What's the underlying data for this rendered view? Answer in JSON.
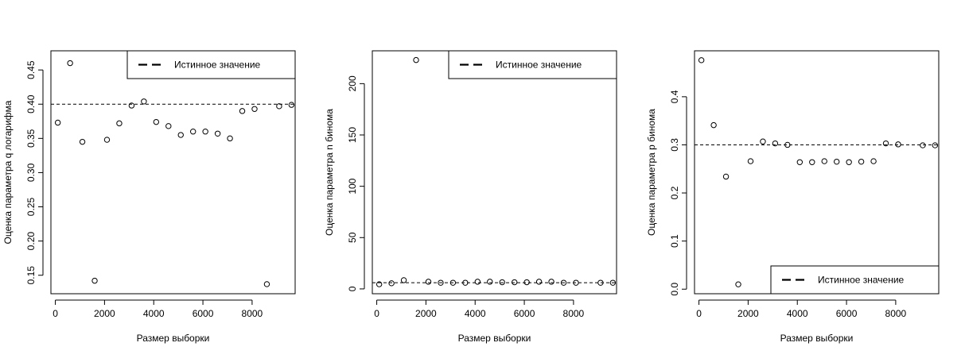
{
  "chart_data": [
    {
      "type": "scatter",
      "xlabel": "Размер выборки",
      "ylabel": "Оценка параметра q логарифма",
      "xlim": [
        -180,
        9750
      ],
      "ylim": [
        0.123,
        0.478
      ],
      "xticks": [
        0,
        2000,
        4000,
        6000,
        8000
      ],
      "xtick_labels": [
        "0",
        "2000",
        "4000",
        "6000",
        "8000"
      ],
      "yticks": [
        0.15,
        0.2,
        0.25,
        0.3,
        0.35,
        0.4,
        0.45
      ],
      "ytick_labels": [
        "0.15",
        "0.20",
        "0.25",
        "0.30",
        "0.35",
        "0.40",
        "0.45"
      ],
      "reference_line": {
        "y": 0.4,
        "style": "dashed"
      },
      "legend": {
        "label": "Истинное значение",
        "position": "top-right"
      },
      "series": [
        {
          "x": [
            100,
            600,
            1100,
            1600,
            2100,
            2600,
            3100,
            3600,
            4100,
            4600,
            5100,
            5600,
            6100,
            6600,
            7100,
            7600,
            8100,
            8600,
            9100,
            9600
          ],
          "y": [
            0.373,
            0.46,
            0.345,
            0.142,
            0.348,
            0.372,
            0.398,
            0.404,
            0.374,
            0.368,
            0.355,
            0.36,
            0.36,
            0.357,
            0.35,
            0.39,
            0.393,
            0.137,
            0.397,
            0.399
          ]
        }
      ]
    },
    {
      "type": "scatter",
      "xlabel": "Размер выборки",
      "ylabel": "Оценка параметра n бинома",
      "xlim": [
        -180,
        9750
      ],
      "ylim": [
        -4.7,
        232
      ],
      "xticks": [
        0,
        2000,
        4000,
        6000,
        8000
      ],
      "xtick_labels": [
        "0",
        "2000",
        "4000",
        "6000",
        "8000"
      ],
      "yticks": [
        0,
        50,
        100,
        150,
        200
      ],
      "ytick_labels": [
        "0",
        "50",
        "100",
        "150",
        "200"
      ],
      "reference_line": {
        "y": 6,
        "style": "dashed"
      },
      "legend": {
        "label": "Истинное значение",
        "position": "top-right"
      },
      "series": [
        {
          "x": [
            100,
            600,
            1100,
            1600,
            2100,
            2600,
            3100,
            3600,
            4100,
            4600,
            5100,
            5600,
            6100,
            6600,
            7100,
            7600,
            8100,
            9100,
            9600
          ],
          "y": [
            4.5,
            5.5,
            8.5,
            223,
            7,
            6,
            6,
            6,
            7,
            7,
            6.5,
            6.5,
            6.5,
            7,
            7,
            6,
            6,
            6,
            6
          ]
        }
      ]
    },
    {
      "type": "scatter",
      "xlabel": "Размер выборки",
      "ylabel": "Оценка параметра p бинома",
      "xlim": [
        -180,
        9750
      ],
      "ylim": [
        -0.0095,
        0.4955
      ],
      "xticks": [
        0,
        2000,
        4000,
        6000,
        8000
      ],
      "xtick_labels": [
        "0",
        "2000",
        "4000",
        "6000",
        "8000"
      ],
      "yticks": [
        0,
        0.1,
        0.2,
        0.3,
        0.4
      ],
      "ytick_labels": [
        "0.0",
        "0.1",
        "0.2",
        "0.3",
        "0.4"
      ],
      "reference_line": {
        "y": 0.3,
        "style": "dashed"
      },
      "legend": {
        "label": "Истинное значение",
        "position": "bottom-right"
      },
      "series": [
        {
          "x": [
            100,
            600,
            1100,
            1600,
            2100,
            2600,
            3100,
            3600,
            4100,
            4600,
            5100,
            5600,
            6100,
            6600,
            7100,
            7600,
            8100,
            9100,
            9600
          ],
          "y": [
            0.476,
            0.341,
            0.234,
            0.01,
            0.266,
            0.307,
            0.303,
            0.3,
            0.264,
            0.264,
            0.266,
            0.265,
            0.264,
            0.265,
            0.266,
            0.303,
            0.301,
            0.299,
            0.299
          ]
        }
      ]
    }
  ]
}
